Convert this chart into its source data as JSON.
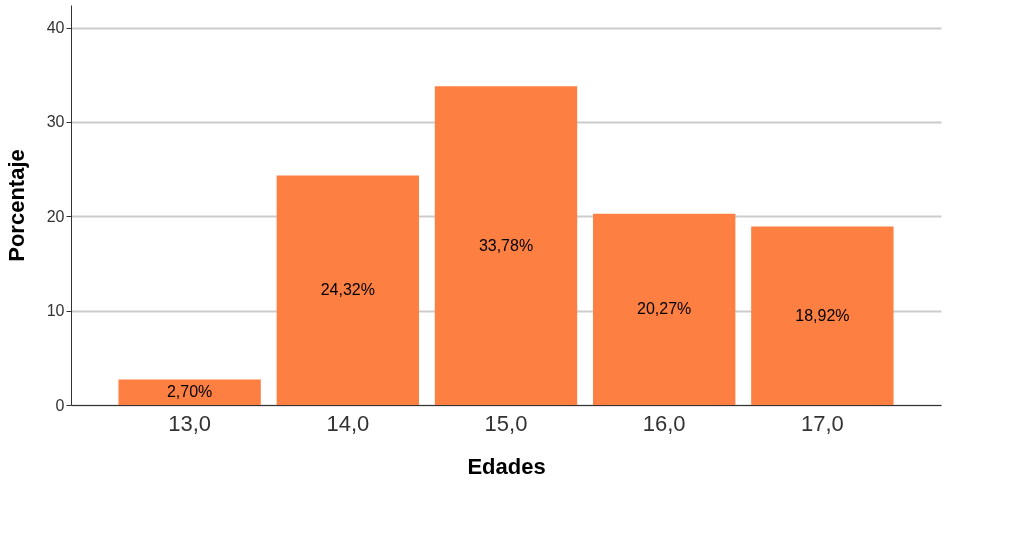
{
  "chart_data": {
    "type": "bar",
    "xlabel": "Edades",
    "ylabel": "Porcentaje",
    "categories": [
      "13,0",
      "14,0",
      "15,0",
      "16,0",
      "17,0"
    ],
    "values": [
      2.7,
      24.32,
      33.78,
      20.27,
      18.92
    ],
    "value_labels": [
      "2,70%",
      "24,32%",
      "33,78%",
      "20,27%",
      "18,92%"
    ],
    "color": "#fd7f42",
    "ylim": [
      0,
      42.4
    ],
    "yticks": [
      0,
      10,
      20,
      30,
      40
    ],
    "grid": "y"
  }
}
